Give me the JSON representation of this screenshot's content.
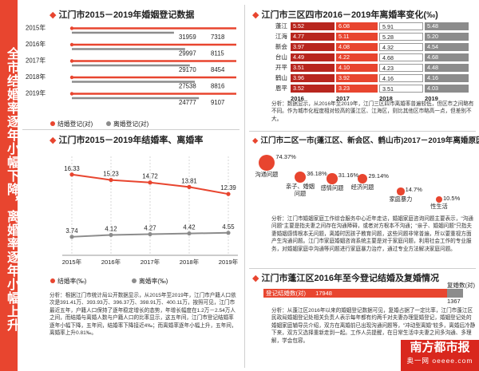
{
  "side_title": "全市结婚率逐年小幅下降，离婚率逐年小幅上升",
  "panel1": {
    "title": "江门市2015－2019年婚姻登记数据",
    "legend_marriage": "结婚登记(对)",
    "legend_divorce": "离婚登记(对)",
    "colors": {
      "marriage": "#e8452f",
      "divorce": "#8c8c8c"
    }
  },
  "panel2": {
    "title": "江门市2015－2019年结婚率、离婚率",
    "legend_marriage": "结婚率(‰)",
    "legend_divorce": "离婚率(‰)",
    "note": "分析：根据江门市统计局公开数据显示，从2015年至2019年，江门市户籍人口依次是391.41万、393.93万、396.37万、398.91万、400.11万，按照可见，江门市最近五年，户籍人口保持了逐年稳定增长的态势，年增长幅度在1.2万－2.54万人之间，而结婚与离婚人数与户籍人口的比率显示，这五年间，江门市登记结婚率逐年小幅下降，五年间，结婚率下降接近4‰；而离婚率逐年小幅上升，五年间，离婚率上升0.81‰。"
  },
  "panel3": {
    "title": "江门市三区四市2016－2019年离婚率变化(‰)",
    "years": [
      "2016",
      "2017",
      "2018",
      "2019"
    ],
    "colors": [
      "#b8261e",
      "#e8452f",
      "#ffffff",
      "#8c8c8c"
    ],
    "note": "分析：数据显示，从2016年至2019年，江门三区四市离婚率普遍较低，但区市之间略有不同。作为城市化程度相对较高的蓬江区、江海区，则比其他区市略高一点，但差别不大。"
  },
  "panel4": {
    "title": "江门市二区一市(蓬江区、新会区、鹤山市)2017－2019年离婚原因分析",
    "note": "分析：江门市婚姻家庭工作综合服务中心近年走访，婚姻家庭咨询问题主要表示，\"沟通问题\"主要是指夫妻之间存在沟通障碍，或者对方根本不沟通；\"亲子、婚姻问题\"只指夫妻婚姻感情根本无问题，离婚时因孩子教育问题，这些问题非常普遍，所以要重视方面产生沟通问题。江门市家庭婚姻咨询系统主要是对于家庭问题，利用社会工作的专业服务，对婚姻家庭中沟通等问题进行家庭暴力治疗，通过专业方法解决家庭问题。"
  },
  "panel5": {
    "title": "江门市蓬江区2016年至今登记结婚及复婚情况",
    "marriage_label": "登记结婚数(对)",
    "marriage_value": "17948",
    "remarriage_label": "复婚数(对)",
    "remarriage_value": "1367",
    "note": "分析：从蓬江区2016年以来的婚姻登记数据可见，复婚占据了一定比率，江门市蓬江区民政局婚姻登记处相关负责人表示每年都有约两千对夫妻办理复婚登记，婚姻登记处的婚姻家庭辅导员介绍，双方在离婚前已出现沟通问题等，\"冲动型离婚\"较多，离婚后冷静下来，双方又选择重新走到一起。工作人员提醒，在日常生活中夫妻之间多沟通、多理解，学会包容。"
  },
  "watermark": {
    "main": "南方都市报",
    "sub": "奥一网 oeeee.com"
  },
  "chart_data": [
    {
      "type": "bar",
      "title": "江门市2015－2019年婚姻登记数据",
      "categories": [
        "2015年",
        "2016年",
        "2017年",
        "2018年",
        "2019年"
      ],
      "series": [
        {
          "name": "结婚登记(对)",
          "values": [
            31959,
            29997,
            29170,
            27538,
            24777
          ]
        },
        {
          "name": "离婚登记(对)",
          "values": [
            7318,
            8115,
            8454,
            8816,
            9107
          ]
        }
      ]
    },
    {
      "type": "line",
      "title": "江门市2015－2019年结婚率、离婚率",
      "categories": [
        "2015年",
        "2016年",
        "2017年",
        "2018年",
        "2019年"
      ],
      "series": [
        {
          "name": "结婚率(‰)",
          "values": [
            16.33,
            15.23,
            14.72,
            13.81,
            12.39
          ]
        },
        {
          "name": "离婚率(‰)",
          "values": [
            3.74,
            4.12,
            4.27,
            4.42,
            4.55
          ]
        }
      ],
      "ylim": [
        0,
        20
      ]
    },
    {
      "type": "bar",
      "title": "江门市三区四市2016－2019年离婚率变化(‰)",
      "categories": [
        "蓬江",
        "江海",
        "新会",
        "台山",
        "开平",
        "鹤山",
        "恩平"
      ],
      "series": [
        {
          "name": "2016",
          "values": [
            5.52,
            4.77,
            3.97,
            4.49,
            3.51,
            3.96,
            3.52
          ]
        },
        {
          "name": "2017",
          "values": [
            6.08,
            5.11,
            4.08,
            4.22,
            4.1,
            3.92,
            3.23
          ]
        },
        {
          "name": "2018",
          "values": [
            5.91,
            5.28,
            4.32,
            4.68,
            4.23,
            4.16,
            3.51
          ]
        },
        {
          "name": "2019",
          "values": [
            5.48,
            5.2,
            4.54,
            4.68,
            4.48,
            4.16,
            4.03
          ]
        }
      ]
    },
    {
      "type": "scatter",
      "title": "江门市二区一市(蓬江区、新会区、鹤山市)2017－2019年离婚原因分析",
      "categories": [
        "沟通问题",
        "亲子、婚姻问题",
        "感情问题",
        "经济问题",
        "家庭暴力",
        "性生活"
      ],
      "values": [
        74.37,
        36.18,
        31.16,
        29.14,
        14.7,
        10.5
      ]
    },
    {
      "type": "bar",
      "title": "江门市蓬江区2016年至今登记结婚及复婚情况",
      "categories": [
        "登记结婚数(对)",
        "复婚数(对)"
      ],
      "values": [
        17948,
        1367
      ]
    }
  ]
}
